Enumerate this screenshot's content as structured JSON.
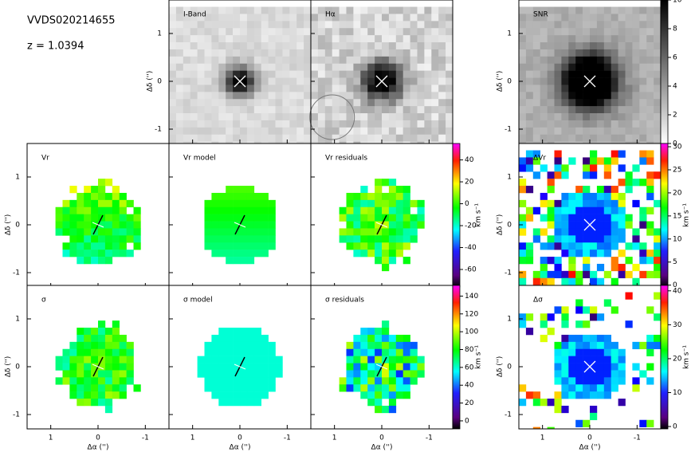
{
  "annotations": [
    "VVDS020214655",
    "z = 1.0394"
  ],
  "chart_data": [
    {
      "type": "image",
      "title": "I-Band",
      "colormap": "gray",
      "xlim": [
        1.5,
        -1.5
      ],
      "ylim": [
        -1.3,
        1.7
      ],
      "xticks": [
        1,
        0,
        -1
      ],
      "yticks": [
        1,
        0,
        -1
      ],
      "ylabel": "Δδ ('')"
    },
    {
      "type": "image",
      "title": "Hα",
      "colormap": "gray",
      "xlim": [
        1.5,
        -1.5
      ],
      "ylim": [
        -1.3,
        1.7
      ],
      "xticks": [
        1,
        0,
        -1
      ],
      "yticks": [
        1,
        0,
        -1
      ]
    },
    {
      "type": "image",
      "title": "SNR",
      "colormap": "gray",
      "xlim": [
        1.5,
        -1.5
      ],
      "ylim": [
        -1.3,
        1.7
      ],
      "xticks": [
        1,
        0,
        -1
      ],
      "yticks": [
        1,
        0,
        -1
      ],
      "ylabel": "Δδ ('')"
    },
    {
      "type": "image",
      "title": "Vr",
      "colormap": "rainbow",
      "xlim": [
        1.5,
        -1.5
      ],
      "ylim": [
        -1.3,
        1.7
      ],
      "xticks": [
        1,
        0,
        -1
      ],
      "yticks": [
        1,
        0,
        -1
      ],
      "ylabel": "Δδ ('')"
    },
    {
      "type": "image",
      "title": "Vr model",
      "colormap": "rainbow",
      "xlim": [
        1.5,
        -1.5
      ],
      "ylim": [
        -1.3,
        1.7
      ],
      "xticks": [
        1,
        0,
        -1
      ],
      "yticks": [
        1,
        0,
        -1
      ]
    },
    {
      "type": "image",
      "title": "Vr residuals",
      "colormap": "rainbow",
      "xlim": [
        1.5,
        -1.5
      ],
      "ylim": [
        -1.3,
        1.7
      ],
      "xticks": [
        1,
        0,
        -1
      ],
      "yticks": [
        1,
        0,
        -1
      ]
    },
    {
      "type": "image",
      "title": "ΔVr",
      "colormap": "rainbow",
      "xlim": [
        1.5,
        -1.5
      ],
      "ylim": [
        -1.3,
        1.7
      ],
      "xticks": [
        1,
        0,
        -1
      ],
      "yticks": [
        1,
        0,
        -1
      ],
      "ylabel": "Δδ ('')"
    },
    {
      "type": "image",
      "title": "σ",
      "colormap": "rainbow",
      "xlim": [
        1.5,
        -1.5
      ],
      "ylim": [
        -1.3,
        1.7
      ],
      "xticks": [
        1,
        0,
        -1
      ],
      "yticks": [
        1,
        0,
        -1
      ],
      "ylabel": "Δδ ('')",
      "xlabel": "Δα ('')"
    },
    {
      "type": "image",
      "title": "σ model",
      "colormap": "rainbow",
      "xlim": [
        1.5,
        -1.5
      ],
      "ylim": [
        -1.3,
        1.7
      ],
      "xticks": [
        1,
        0,
        -1
      ],
      "yticks": [
        1,
        0,
        -1
      ],
      "xlabel": "Δα ('')"
    },
    {
      "type": "image",
      "title": "σ residuals",
      "colormap": "rainbow",
      "xlim": [
        1.5,
        -1.5
      ],
      "ylim": [
        -1.3,
        1.7
      ],
      "xticks": [
        1,
        0,
        -1
      ],
      "yticks": [
        1,
        0,
        -1
      ],
      "xlabel": "Δα ('')"
    },
    {
      "type": "image",
      "title": "Δσ",
      "colormap": "rainbow",
      "xlim": [
        1.5,
        -1.5
      ],
      "ylim": [
        -1.3,
        1.7
      ],
      "xticks": [
        1,
        0,
        -1
      ],
      "yticks": [
        1,
        0,
        -1
      ],
      "ylabel": "Δδ ('')",
      "xlabel": "Δα ('')"
    },
    {
      "type": "colorbar",
      "colormap": "gray",
      "ylim": [
        0,
        10
      ],
      "yticks": [
        0,
        2,
        4,
        6,
        8,
        10
      ]
    },
    {
      "type": "colorbar",
      "colormap": "rainbow",
      "ylim": [
        -76,
        55
      ],
      "yticks": [
        40,
        20,
        0,
        -20,
        -40,
        -60
      ],
      "ylabel": "km s⁻¹"
    },
    {
      "type": "colorbar",
      "colormap": "rainbow",
      "ylim": [
        -0.4,
        30.7
      ],
      "yticks": [
        0,
        5,
        10,
        15,
        20,
        25,
        30
      ],
      "ylabel": "km s⁻¹"
    },
    {
      "type": "colorbar",
      "colormap": "rainbow",
      "ylim": [
        -9,
        152
      ],
      "yticks": [
        0,
        20,
        40,
        60,
        80,
        100,
        120,
        140
      ],
      "ylabel": "km s⁻¹"
    },
    {
      "type": "colorbar",
      "colormap": "rainbow",
      "ylim": [
        -0.7,
        41.6
      ],
      "yticks": [
        0,
        10,
        20,
        30,
        40
      ],
      "ylabel": "km s⁻¹"
    }
  ]
}
